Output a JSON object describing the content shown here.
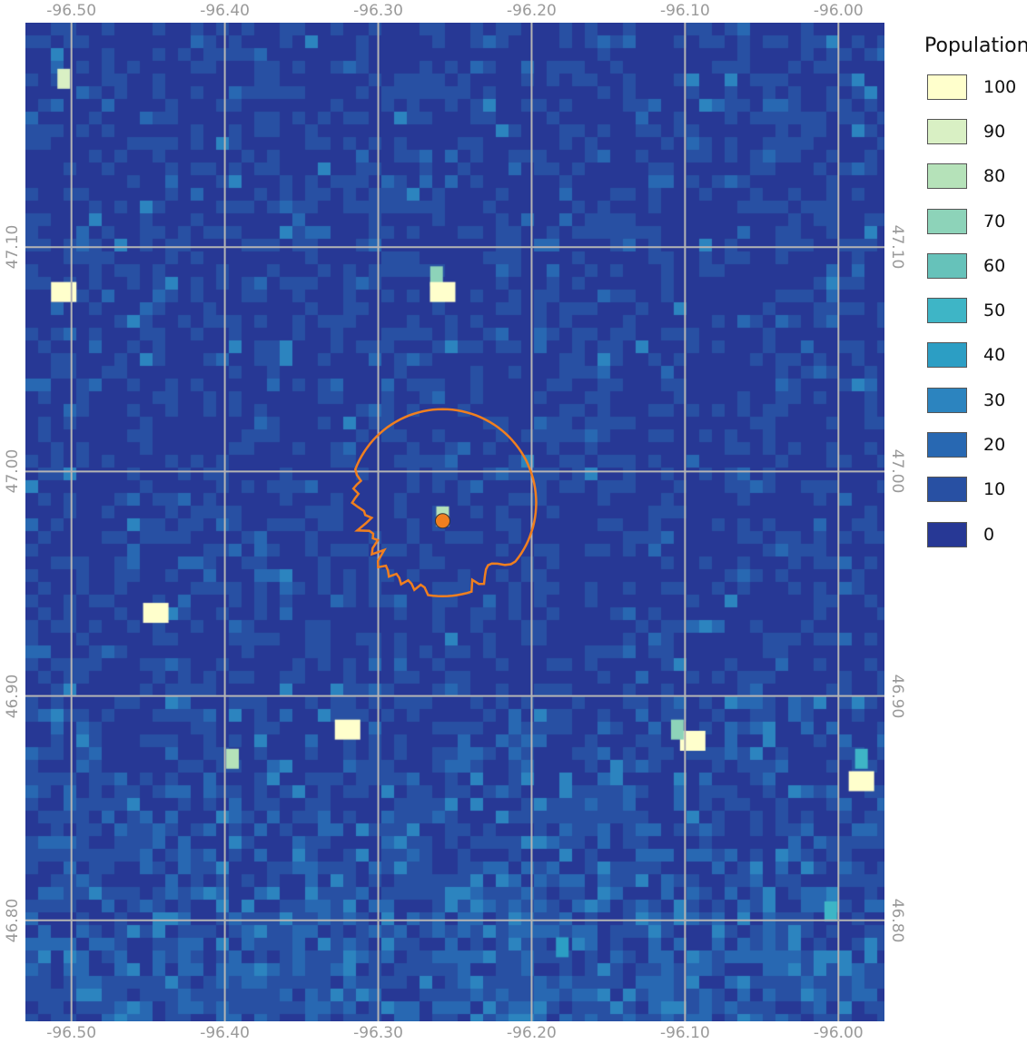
{
  "map": {
    "lon_ticks": [
      "-96.50",
      "-96.40",
      "-96.30",
      "-96.20",
      "-96.10",
      "-96.00"
    ],
    "lat_ticks": [
      "47.10",
      "47.00",
      "46.90",
      "46.80"
    ],
    "lon_values": [
      -96.5,
      -96.4,
      -96.3,
      -96.2,
      -96.1,
      -96.0
    ],
    "lat_values": [
      47.1,
      47.0,
      46.9,
      46.8
    ],
    "lon_range": [
      -96.53,
      -95.97
    ],
    "lat_range": [
      46.755,
      47.2
    ],
    "grid_color": "#b4b4b4",
    "boundary_color": "#f07f1f",
    "center_point": {
      "lon": -96.258,
      "lat": 46.978,
      "color": "#f07f1f"
    },
    "hotspots": [
      {
        "lon": -96.505,
        "lat": 47.175,
        "value": 90
      },
      {
        "lon": -96.505,
        "lat": 47.08,
        "value": 100
      },
      {
        "lon": -96.262,
        "lat": 47.087,
        "value": 70
      },
      {
        "lon": -96.258,
        "lat": 47.08,
        "value": 100
      },
      {
        "lon": -96.258,
        "lat": 46.98,
        "value": 80
      },
      {
        "lon": -96.445,
        "lat": 46.937,
        "value": 100
      },
      {
        "lon": -96.32,
        "lat": 46.885,
        "value": 100
      },
      {
        "lon": -96.395,
        "lat": 46.872,
        "value": 80
      },
      {
        "lon": -96.095,
        "lat": 46.88,
        "value": 100
      },
      {
        "lon": -96.105,
        "lat": 46.885,
        "value": 70
      },
      {
        "lon": -95.985,
        "lat": 46.862,
        "value": 100
      },
      {
        "lon": -95.985,
        "lat": 46.872,
        "value": 50
      },
      {
        "lon": -96.005,
        "lat": 46.804,
        "value": 50
      },
      {
        "lon": -96.18,
        "lat": 46.788,
        "value": 40
      }
    ]
  },
  "legend": {
    "title": "Population",
    "items": [
      {
        "label": "100",
        "color": "#ffffcc"
      },
      {
        "label": "90",
        "color": "#d9f0c4"
      },
      {
        "label": "80",
        "color": "#b5e2b9"
      },
      {
        "label": "70",
        "color": "#8dd3b9"
      },
      {
        "label": "60",
        "color": "#66c2ba"
      },
      {
        "label": "50",
        "color": "#3eb5c6"
      },
      {
        "label": "40",
        "color": "#2c9ec4"
      },
      {
        "label": "30",
        "color": "#2c84bf"
      },
      {
        "label": "20",
        "color": "#2868b2"
      },
      {
        "label": "10",
        "color": "#2850a3"
      },
      {
        "label": "0",
        "color": "#273895"
      }
    ]
  }
}
